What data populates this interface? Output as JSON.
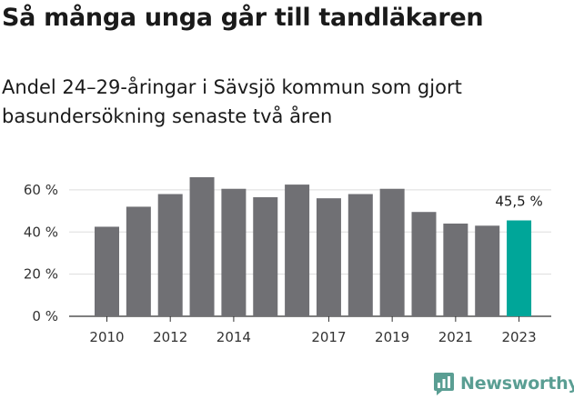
{
  "header": {
    "title": "Så många unga går till tandläkaren",
    "subtitle": "Andel 24–29-åringar i Sävsjö kommun som gjort basundersökning senaste två åren"
  },
  "brand": {
    "name": "Newsworthy",
    "logo_icon": "bar-chart-speech-bubble-icon",
    "color": "#5a9e93"
  },
  "colors": {
    "bar": "#707074",
    "highlight": "#00a699",
    "axis": "#333333",
    "grid": "#dddddd"
  },
  "chart_data": {
    "type": "bar",
    "categories": [
      "2010",
      "2011",
      "2012",
      "2013",
      "2014",
      "2015",
      "2016",
      "2017",
      "2018",
      "2019",
      "2020",
      "2021",
      "2022",
      "2023"
    ],
    "values": [
      42.5,
      52,
      58,
      66,
      60.5,
      56.5,
      62.5,
      56,
      58,
      60.5,
      49.5,
      44,
      43,
      45.5
    ],
    "highlight_index": 13,
    "highlight_label": "45,5 %",
    "x_tick_labels": [
      "2010",
      "2012",
      "2014",
      "2017",
      "2019",
      "2021",
      "2023"
    ],
    "y_ticks": [
      0,
      20,
      40,
      60
    ],
    "y_tick_labels": [
      "0 %",
      "20 %",
      "40 %",
      "60 %"
    ],
    "ylim": [
      0,
      70
    ],
    "grid": true,
    "title": "Så många unga går till tandläkaren",
    "subtitle": "Andel 24–29-åringar i Sävsjö kommun som gjort basundersökning senaste två åren",
    "xlabel": "",
    "ylabel": ""
  }
}
